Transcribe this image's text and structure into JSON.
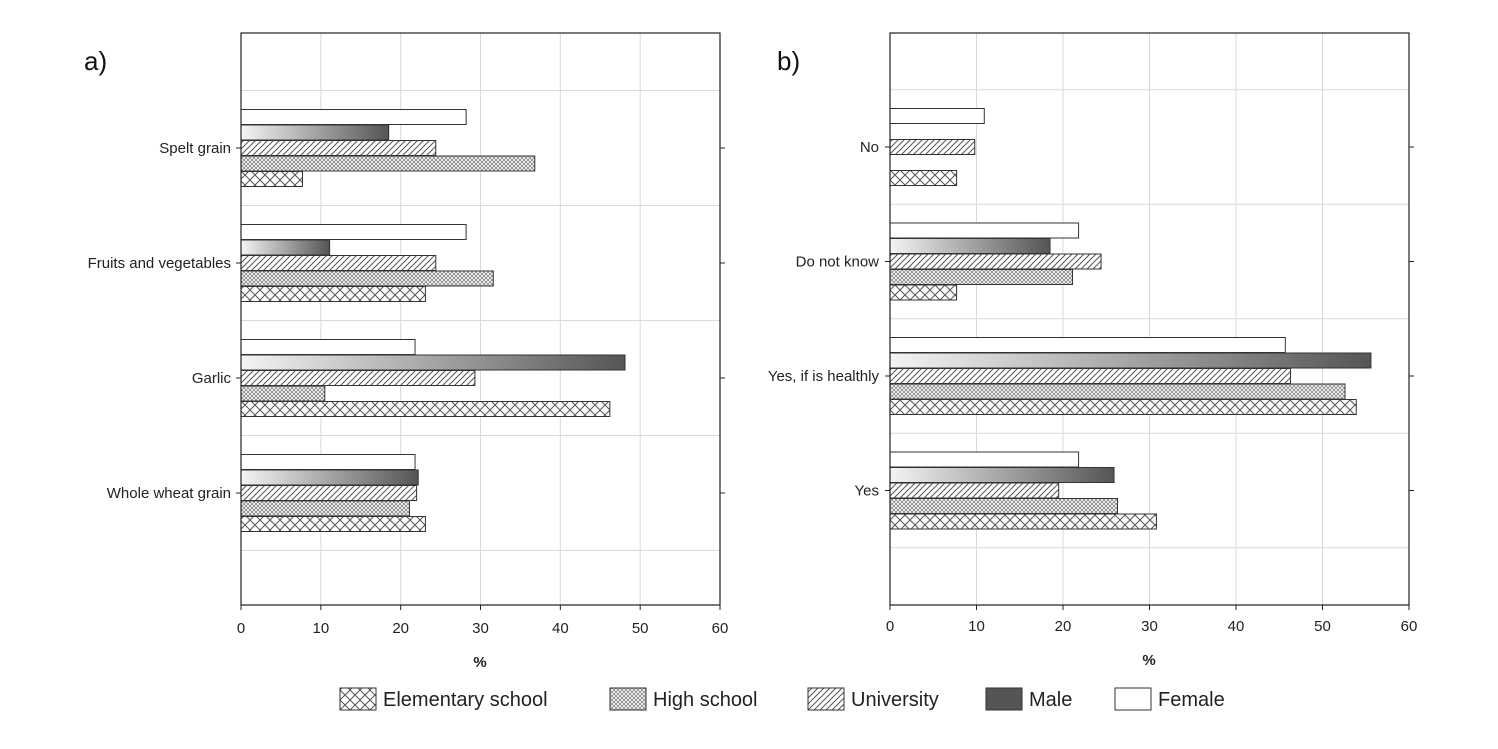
{
  "legend": {
    "items": [
      {
        "key": "elementary",
        "label": "Elementary school"
      },
      {
        "key": "high",
        "label": "High school"
      },
      {
        "key": "university",
        "label": "University"
      },
      {
        "key": "male",
        "label": "Male"
      },
      {
        "key": "female",
        "label": "Female"
      }
    ]
  },
  "colors": {
    "bar_outline": "#333333",
    "grid": "#d9d9d9",
    "male_fill_light": "#f4f4f4",
    "male_fill_dark": "#555555",
    "female_fill": "#ffffff"
  },
  "chart_data": [
    {
      "type": "bar",
      "orientation": "horizontal",
      "panel_label": "a)",
      "xlabel": "%",
      "xlim": [
        0,
        60
      ],
      "xticks": [
        0,
        10,
        20,
        30,
        40,
        50,
        60
      ],
      "grid": true,
      "categories": [
        "Spelt grain",
        "Fruits and vegetables",
        "Garlic",
        "Whole wheat grain"
      ],
      "series": [
        {
          "name": "Female",
          "key": "female",
          "values": [
            28.2,
            28.2,
            21.8,
            21.8
          ]
        },
        {
          "name": "Male",
          "key": "male",
          "values": [
            18.5,
            11.1,
            48.1,
            22.2
          ]
        },
        {
          "name": "University",
          "key": "university",
          "values": [
            24.4,
            24.4,
            29.3,
            22.0
          ]
        },
        {
          "name": "High school",
          "key": "high",
          "values": [
            36.8,
            31.6,
            10.5,
            21.1
          ]
        },
        {
          "name": "Elementary school",
          "key": "elementary",
          "values": [
            7.7,
            23.1,
            46.2,
            23.1
          ]
        }
      ]
    },
    {
      "type": "bar",
      "orientation": "horizontal",
      "panel_label": "b)",
      "xlabel": "%",
      "xlim": [
        0,
        60
      ],
      "xticks": [
        0,
        10,
        20,
        30,
        40,
        50,
        60
      ],
      "grid": true,
      "categories": [
        "No",
        "Do not know",
        "Yes, if is healthly",
        "Yes"
      ],
      "series": [
        {
          "name": "Female",
          "key": "female",
          "values": [
            10.9,
            21.8,
            45.7,
            21.8
          ]
        },
        {
          "name": "Male",
          "key": "male",
          "values": [
            0,
            18.5,
            55.6,
            25.9
          ]
        },
        {
          "name": "University",
          "key": "university",
          "values": [
            9.8,
            24.4,
            46.3,
            19.5
          ]
        },
        {
          "name": "High school",
          "key": "high",
          "values": [
            0,
            21.1,
            52.6,
            26.3
          ]
        },
        {
          "name": "Elementary school",
          "key": "elementary",
          "values": [
            7.7,
            7.7,
            53.9,
            30.8
          ]
        }
      ]
    }
  ]
}
